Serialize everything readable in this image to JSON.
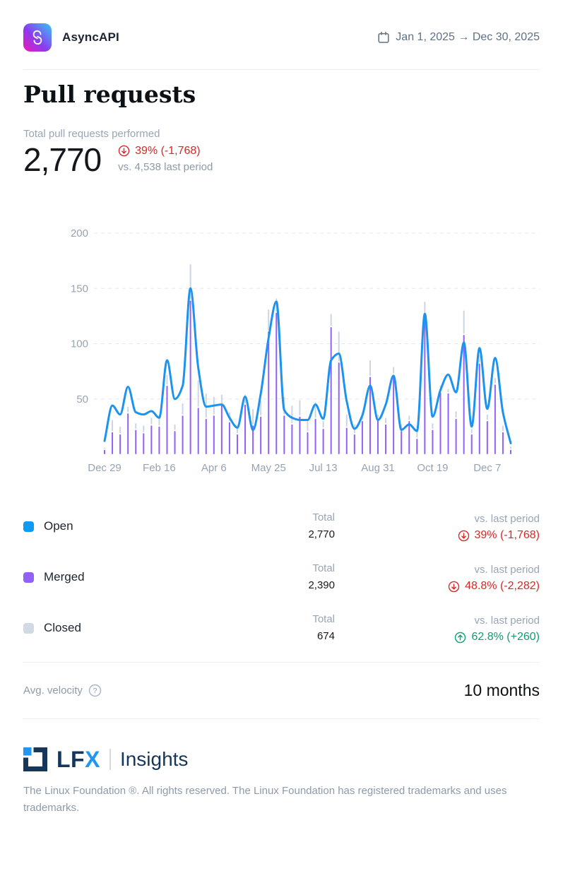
{
  "header": {
    "brand": "AsyncAPI",
    "date_range": "Jan 1, 2025 → Dec 30, 2025"
  },
  "page": {
    "title": "Pull requests"
  },
  "summary": {
    "label": "Total pull requests performed",
    "value": "2,770",
    "change": "39% (-1,768)",
    "change_direction": "down",
    "vs_text": "vs. 4,538 last period"
  },
  "chart_data": {
    "type": "line+bar",
    "x_unit": "week",
    "n_points": 53,
    "x_tick_labels": [
      {
        "index": 0,
        "label": "Dec 29"
      },
      {
        "index": 7,
        "label": "Feb 16"
      },
      {
        "index": 14,
        "label": "Apr 6"
      },
      {
        "index": 21,
        "label": "May 25"
      },
      {
        "index": 28,
        "label": "Jul 13"
      },
      {
        "index": 35,
        "label": "Aug 31"
      },
      {
        "index": 42,
        "label": "Oct 19"
      },
      {
        "index": 49,
        "label": "Dec 7"
      }
    ],
    "y_ticks": [
      50,
      100,
      150,
      200
    ],
    "ylim": [
      0,
      212
    ],
    "grid": "dashed-horizontal",
    "legend_position": "below",
    "series": [
      {
        "name": "Open",
        "type": "line",
        "color": "#1d93ef",
        "values": [
          12,
          44,
          36,
          61,
          38,
          36,
          39,
          33,
          85,
          50,
          62,
          150,
          78,
          43,
          44,
          45,
          33,
          24,
          52,
          22,
          55,
          105,
          138,
          40,
          33,
          31,
          31,
          45,
          32,
          85,
          91,
          48,
          23,
          35,
          62,
          31,
          45,
          71,
          22,
          27,
          21,
          127,
          34,
          58,
          72,
          56,
          101,
          25,
          96,
          41,
          87,
          38,
          10
        ]
      },
      {
        "name": "Merged",
        "type": "bar",
        "color": "#9161f9",
        "values": [
          4,
          20,
          18,
          37,
          22,
          19,
          26,
          25,
          62,
          21,
          35,
          139,
          42,
          32,
          35,
          45,
          29,
          18,
          45,
          26,
          34,
          111,
          128,
          35,
          27,
          34,
          20,
          32,
          23,
          115,
          83,
          24,
          18,
          30,
          70,
          31,
          27,
          72,
          21,
          30,
          14,
          124,
          22,
          56,
          55,
          32,
          108,
          18,
          82,
          30,
          63,
          20,
          4
        ]
      },
      {
        "name": "Closed",
        "type": "bar-stacked-on-merged",
        "color": "#ccd5e2",
        "values": [
          2,
          11,
          7,
          6,
          6,
          7,
          7,
          10,
          10,
          6,
          11,
          33,
          25,
          23,
          17,
          9,
          9,
          9,
          9,
          15,
          14,
          20,
          13,
          17,
          17,
          15,
          10,
          15,
          7,
          12,
          28,
          12,
          9,
          8,
          15,
          5,
          6,
          7,
          6,
          5,
          7,
          14,
          6,
          6,
          4,
          7,
          22,
          5,
          8,
          6,
          6,
          6,
          3
        ]
      }
    ]
  },
  "legend": {
    "total_label": "Total",
    "vs_label": "vs. last period",
    "rows": [
      {
        "name": "Open",
        "color": "#0d9bf5",
        "total": "2,770",
        "change": "39% (-1,768)",
        "direction": "down"
      },
      {
        "name": "Merged",
        "color": "#9161f9",
        "total": "2,390",
        "change": "48.8% (-2,282)",
        "direction": "down"
      },
      {
        "name": "Closed",
        "color": "#d2d9e4",
        "total": "674",
        "change": "62.8% (+260)",
        "direction": "up"
      }
    ]
  },
  "velocity": {
    "label": "Avg. velocity",
    "value": "10 months"
  },
  "footer": {
    "logo_lf": "LF",
    "logo_x": "X",
    "logo_suffix": "Insights",
    "copyright": "The Linux Foundation ®. All rights reserved. The Linux Foundation has registered trademarks and uses trademarks."
  },
  "colors": {
    "open": "#0d9bf5",
    "merged": "#9161f9",
    "closed": "#d2d9e4",
    "negative": "#dc2626",
    "positive": "#0e9f6e",
    "grid": "#e3e8ef",
    "axis_text": "#97a3b2"
  }
}
